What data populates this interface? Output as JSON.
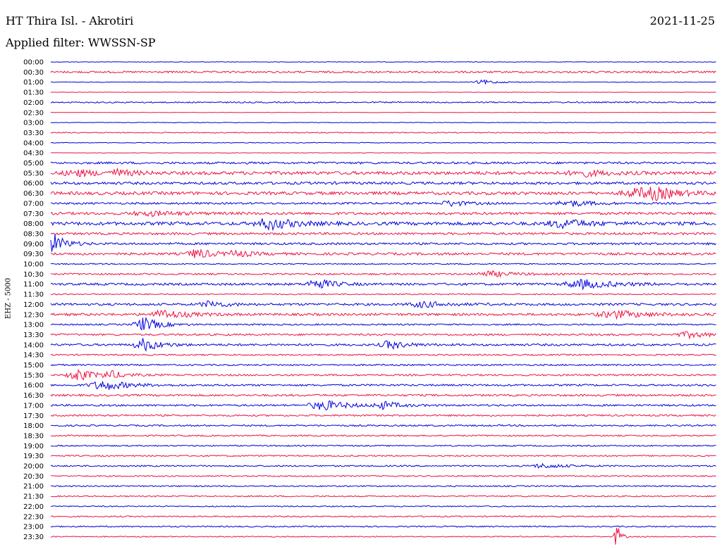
{
  "header": {
    "station": "HT Thira Isl. - Akrotiri",
    "date": "2021-11-25",
    "filter": "Applied filter: WWSSN-SP",
    "side_label": "EHZ - 5000"
  },
  "chart_data": {
    "type": "line",
    "title": "HT Thira Isl. - Akrotiri",
    "date": "2021-11-25",
    "ylabel": "EHZ - 5000",
    "row_labels": [
      "00:00",
      "00:30",
      "01:00",
      "01:30",
      "02:00",
      "02:30",
      "03:00",
      "03:30",
      "04:00",
      "04:30",
      "05:00",
      "05:30",
      "06:00",
      "06:30",
      "07:00",
      "07:30",
      "08:00",
      "08:30",
      "09:00",
      "09:30",
      "10:00",
      "10:30",
      "11:00",
      "11:30",
      "12:00",
      "12:30",
      "13:00",
      "13:30",
      "14:00",
      "14:30",
      "15:00",
      "15:30",
      "16:00",
      "16:30",
      "17:00",
      "17:30",
      "18:00",
      "18:30",
      "19:00",
      "19:30",
      "20:00",
      "20:30",
      "21:00",
      "21:30",
      "22:00",
      "22:30",
      "23:00",
      "23:30"
    ],
    "colors": [
      "#0000dd",
      "#ee1144"
    ],
    "trace_style": "helicorder, alternating blue/red, 30-minute rows",
    "noise_level": [
      0.4,
      1.3,
      0.4,
      0.3,
      0.9,
      0.3,
      0.4,
      0.7,
      0.5,
      0.4,
      1.5,
      2.3,
      1.8,
      2.2,
      1.4,
      1.8,
      2.3,
      1.6,
      1.5,
      1.7,
      0.8,
      1.2,
      1.6,
      0.8,
      1.6,
      1.7,
      1.1,
      1.3,
      1.5,
      1.0,
      1.1,
      1.2,
      1.3,
      1.4,
      1.3,
      1.2,
      1.1,
      1.0,
      0.9,
      1.0,
      1.0,
      0.9,
      0.9,
      0.9,
      0.8,
      0.9,
      0.9,
      0.7
    ],
    "events": [
      {
        "row": 2,
        "t": 0.65,
        "amp": 3,
        "dur": 0.02
      },
      {
        "row": 11,
        "t": 0.04,
        "amp": 4,
        "dur": 0.03
      },
      {
        "row": 11,
        "t": 0.1,
        "amp": 4,
        "dur": 0.02
      },
      {
        "row": 11,
        "t": 0.8,
        "amp": 4,
        "dur": 0.03
      },
      {
        "row": 13,
        "t": 0.88,
        "amp": 6,
        "dur": 0.03
      },
      {
        "row": 13,
        "t": 0.91,
        "amp": 6,
        "dur": 0.03
      },
      {
        "row": 14,
        "t": 0.6,
        "amp": 4,
        "dur": 0.02
      },
      {
        "row": 14,
        "t": 0.78,
        "amp": 4,
        "dur": 0.03
      },
      {
        "row": 15,
        "t": 0.15,
        "amp": 3,
        "dur": 0.04
      },
      {
        "row": 16,
        "t": 0.33,
        "amp": 8,
        "dur": 0.03
      },
      {
        "row": 16,
        "t": 0.77,
        "amp": 6,
        "dur": 0.03
      },
      {
        "row": 18,
        "t": 0.005,
        "amp": 14,
        "dur": 0.015
      },
      {
        "row": 19,
        "t": 0.22,
        "amp": 7,
        "dur": 0.02
      },
      {
        "row": 19,
        "t": 0.28,
        "amp": 4,
        "dur": 0.02
      },
      {
        "row": 21,
        "t": 0.66,
        "amp": 4,
        "dur": 0.03
      },
      {
        "row": 22,
        "t": 0.4,
        "amp": 8,
        "dur": 0.02
      },
      {
        "row": 22,
        "t": 0.8,
        "amp": 6,
        "dur": 0.04
      },
      {
        "row": 24,
        "t": 0.24,
        "amp": 5,
        "dur": 0.02
      },
      {
        "row": 24,
        "t": 0.56,
        "amp": 4,
        "dur": 0.03
      },
      {
        "row": 25,
        "t": 0.17,
        "amp": 6,
        "dur": 0.03
      },
      {
        "row": 25,
        "t": 0.85,
        "amp": 5,
        "dur": 0.04
      },
      {
        "row": 26,
        "t": 0.14,
        "amp": 10,
        "dur": 0.02
      },
      {
        "row": 27,
        "t": 0.96,
        "amp": 4,
        "dur": 0.03
      },
      {
        "row": 28,
        "t": 0.14,
        "amp": 9,
        "dur": 0.02
      },
      {
        "row": 28,
        "t": 0.51,
        "amp": 6,
        "dur": 0.02
      },
      {
        "row": 31,
        "t": 0.04,
        "amp": 9,
        "dur": 0.02
      },
      {
        "row": 31,
        "t": 0.09,
        "amp": 5,
        "dur": 0.02
      },
      {
        "row": 32,
        "t": 0.08,
        "amp": 7,
        "dur": 0.03
      },
      {
        "row": 34,
        "t": 0.41,
        "amp": 7,
        "dur": 0.03
      },
      {
        "row": 34,
        "t": 0.5,
        "amp": 5,
        "dur": 0.02
      },
      {
        "row": 40,
        "t": 0.74,
        "amp": 3,
        "dur": 0.03
      },
      {
        "row": 47,
        "t": 0.85,
        "amp": 20,
        "dur": 0.005
      }
    ]
  }
}
